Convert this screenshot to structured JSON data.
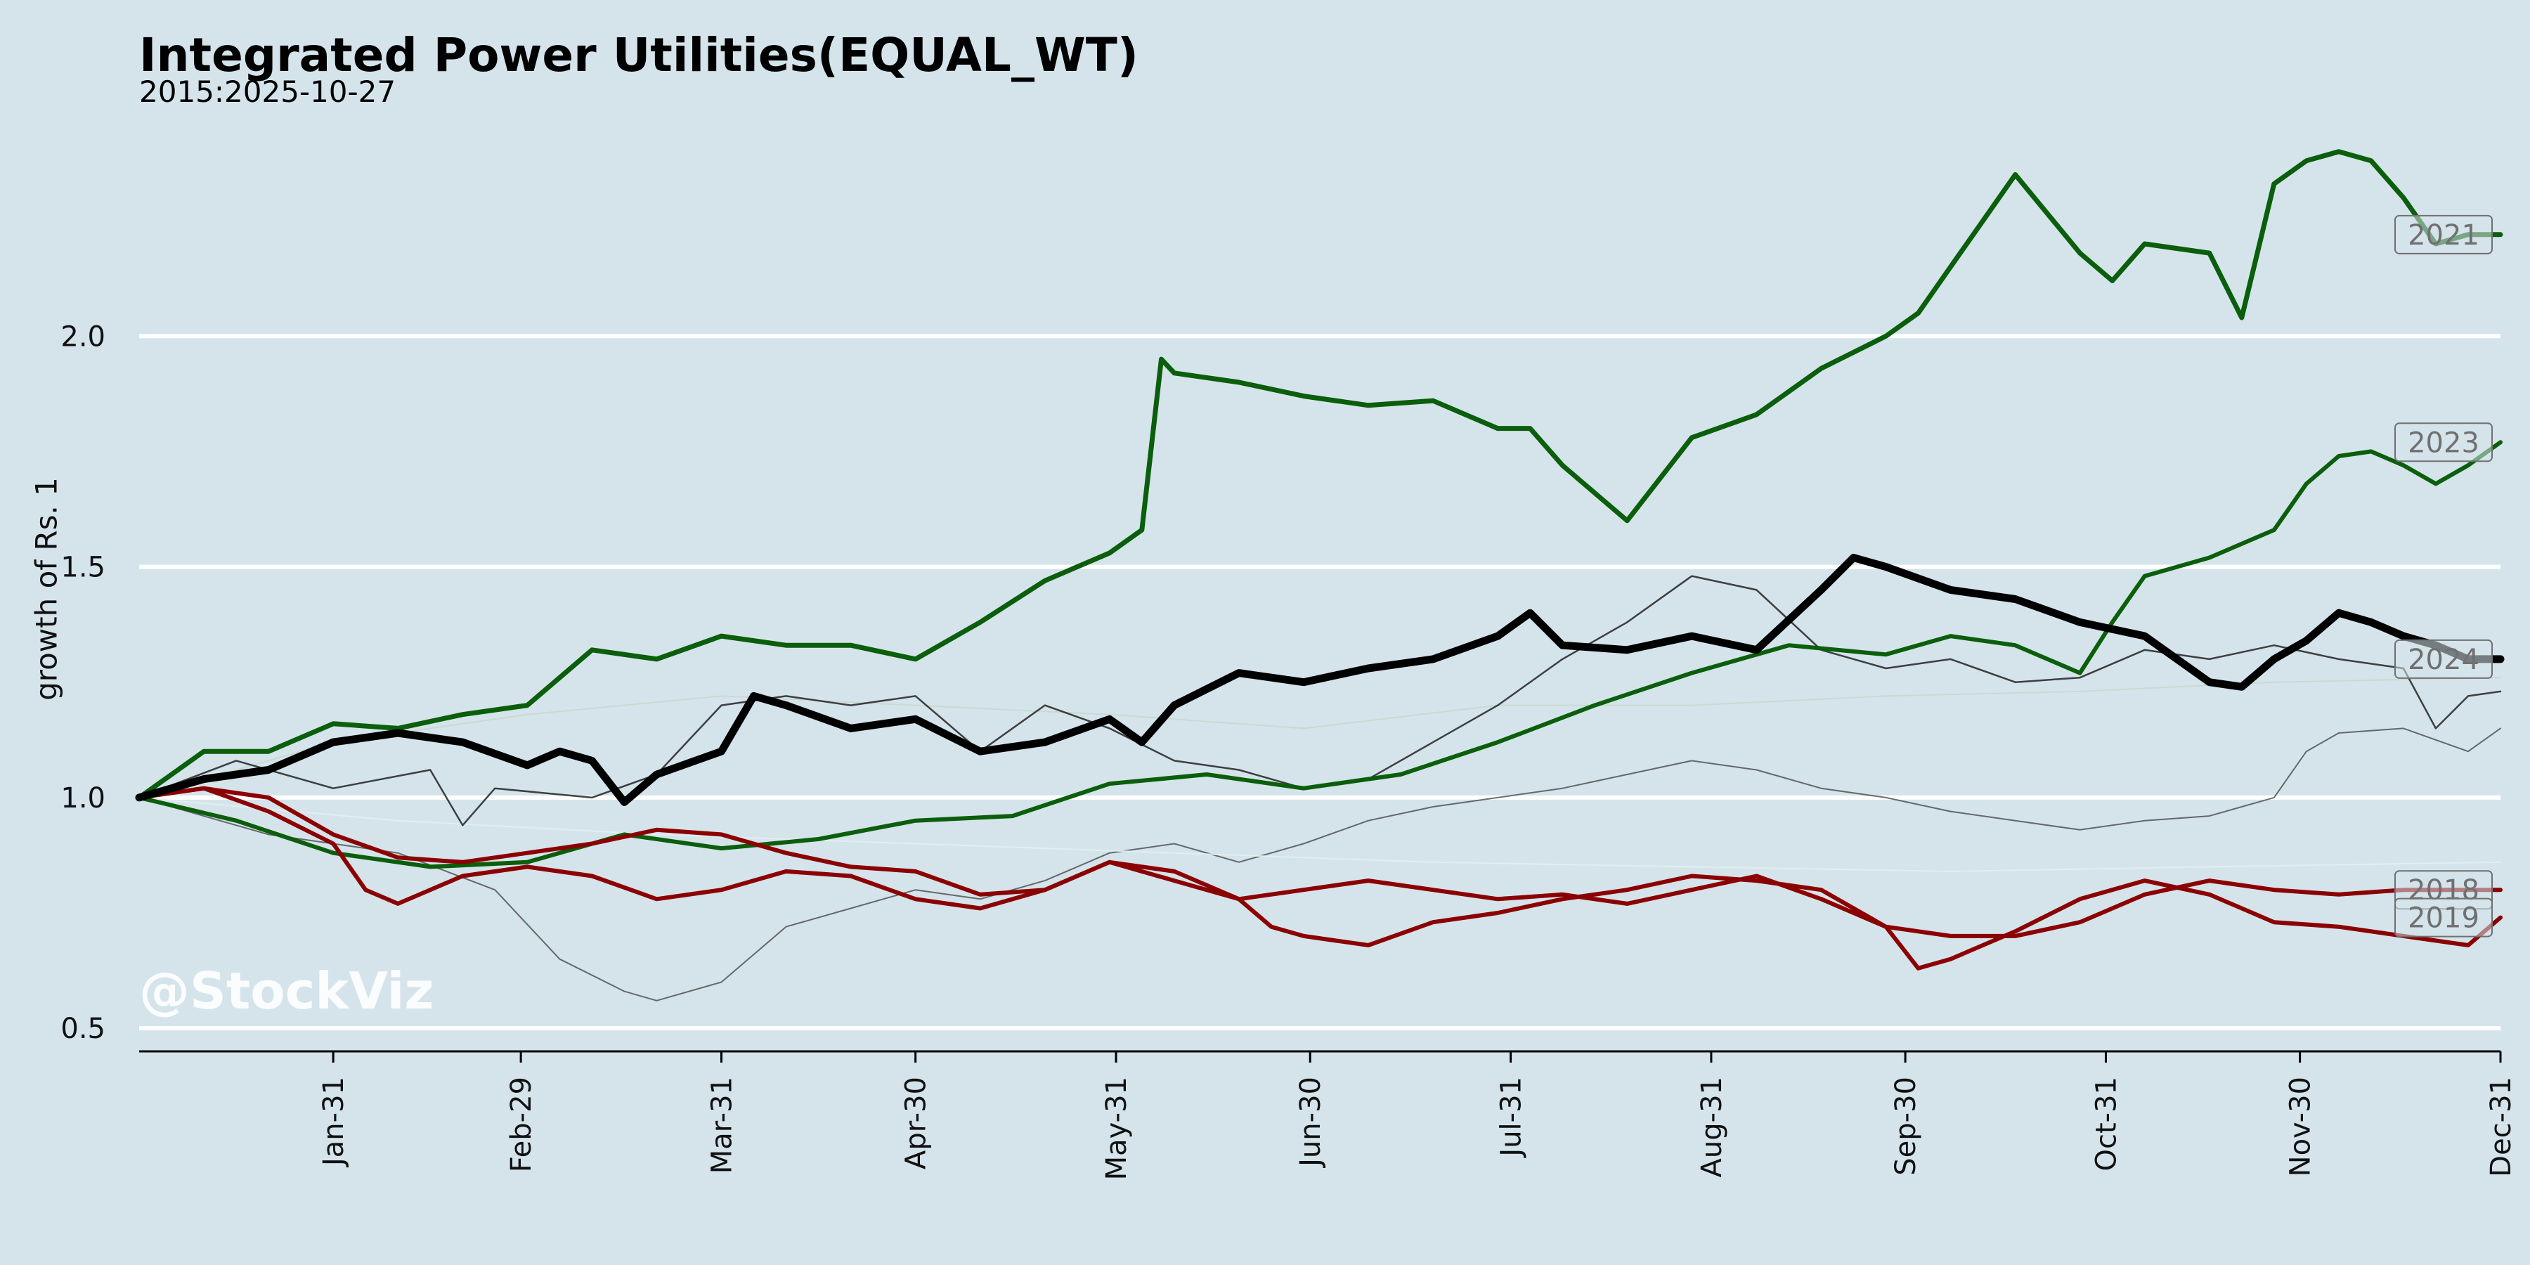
{
  "chart_data": {
    "type": "line",
    "title": "Integrated Power Utilities(EQUAL_WT)",
    "subtitle": "2015:2025-10-27",
    "ylabel": "growth of Rs. 1",
    "watermark": "@StockViz",
    "ylim": [
      0.45,
      2.5
    ],
    "y_ticks": [
      {
        "value": 0.5,
        "label": "0.5"
      },
      {
        "value": 1.0,
        "label": "1.0"
      },
      {
        "value": 1.5,
        "label": "1.5"
      },
      {
        "value": 2.0,
        "label": "2.0"
      }
    ],
    "x_domain_days": [
      0,
      365
    ],
    "x_ticks": [
      {
        "day": 30,
        "label": "Jan-31"
      },
      {
        "day": 59,
        "label": "Feb-29"
      },
      {
        "day": 90,
        "label": "Mar-31"
      },
      {
        "day": 120,
        "label": "Apr-30"
      },
      {
        "day": 151,
        "label": "May-31"
      },
      {
        "day": 181,
        "label": "Jun-30"
      },
      {
        "day": 212,
        "label": "Jul-31"
      },
      {
        "day": 243,
        "label": "Aug-31"
      },
      {
        "day": 273,
        "label": "Sep-30"
      },
      {
        "day": 304,
        "label": "Oct-31"
      },
      {
        "day": 334,
        "label": "Nov-30"
      },
      {
        "day": 365,
        "label": "Dec-31"
      }
    ],
    "grid": true,
    "colors": {
      "background": "#d5e4eb",
      "grid": "#ffffff",
      "green": "#0b5e0b",
      "red": "#8b0000",
      "black": "#000000"
    },
    "series": [
      {
        "name": "2021",
        "color": "#0b5e0b",
        "width": 7,
        "opacity": 1,
        "label": "2021",
        "x": [
          0,
          10,
          20,
          30,
          40,
          50,
          60,
          70,
          80,
          90,
          100,
          110,
          120,
          130,
          140,
          150,
          155,
          158,
          160,
          170,
          180,
          190,
          200,
          210,
          215,
          220,
          230,
          240,
          250,
          260,
          270,
          275,
          280,
          285,
          290,
          300,
          305,
          310,
          320,
          325,
          330,
          335,
          340,
          345,
          350,
          355,
          360,
          365
        ],
        "y": [
          1.0,
          1.1,
          1.1,
          1.16,
          1.15,
          1.18,
          1.2,
          1.32,
          1.3,
          1.35,
          1.33,
          1.33,
          1.3,
          1.38,
          1.47,
          1.53,
          1.58,
          1.95,
          1.92,
          1.9,
          1.87,
          1.85,
          1.86,
          1.8,
          1.8,
          1.72,
          1.6,
          1.78,
          1.83,
          1.93,
          2.0,
          2.05,
          2.15,
          2.25,
          2.35,
          2.18,
          2.12,
          2.2,
          2.18,
          2.04,
          2.33,
          2.38,
          2.4,
          2.38,
          2.3,
          2.2,
          2.22,
          2.22
        ]
      },
      {
        "name": "2023",
        "color": "#0b5e0b",
        "width": 6,
        "opacity": 1,
        "label": "2023",
        "x": [
          0,
          15,
          30,
          45,
          60,
          75,
          90,
          105,
          120,
          135,
          150,
          165,
          180,
          195,
          210,
          225,
          240,
          255,
          270,
          280,
          290,
          300,
          305,
          310,
          320,
          330,
          335,
          340,
          345,
          350,
          355,
          360,
          365
        ],
        "y": [
          1.0,
          0.95,
          0.88,
          0.85,
          0.86,
          0.92,
          0.89,
          0.91,
          0.95,
          0.96,
          1.03,
          1.05,
          1.02,
          1.05,
          1.12,
          1.2,
          1.27,
          1.33,
          1.31,
          1.35,
          1.33,
          1.27,
          1.38,
          1.48,
          1.52,
          1.58,
          1.68,
          1.74,
          1.75,
          1.72,
          1.68,
          1.72,
          1.77
        ]
      },
      {
        "name": "2024",
        "color": "#000000",
        "width": 11,
        "opacity": 1,
        "label": "2024",
        "x": [
          0,
          10,
          20,
          30,
          40,
          50,
          60,
          65,
          70,
          75,
          80,
          90,
          95,
          100,
          110,
          120,
          130,
          140,
          150,
          155,
          160,
          170,
          180,
          190,
          200,
          210,
          215,
          220,
          230,
          240,
          250,
          260,
          265,
          270,
          280,
          290,
          300,
          310,
          320,
          325,
          330,
          335,
          340,
          345,
          350,
          355,
          360,
          365
        ],
        "y": [
          1.0,
          1.04,
          1.06,
          1.12,
          1.14,
          1.12,
          1.07,
          1.1,
          1.08,
          0.99,
          1.05,
          1.1,
          1.22,
          1.2,
          1.15,
          1.17,
          1.1,
          1.12,
          1.17,
          1.12,
          1.2,
          1.27,
          1.25,
          1.28,
          1.3,
          1.35,
          1.4,
          1.33,
          1.32,
          1.35,
          1.32,
          1.45,
          1.52,
          1.5,
          1.45,
          1.43,
          1.38,
          1.35,
          1.25,
          1.24,
          1.3,
          1.34,
          1.4,
          1.38,
          1.35,
          1.33,
          1.3,
          1.3
        ]
      },
      {
        "name": "2018",
        "color": "#8b0000",
        "width": 6,
        "opacity": 1,
        "label": "2018",
        "x": [
          0,
          10,
          20,
          30,
          40,
          50,
          60,
          70,
          80,
          90,
          100,
          110,
          120,
          130,
          140,
          150,
          160,
          170,
          180,
          190,
          200,
          210,
          220,
          230,
          240,
          250,
          260,
          270,
          280,
          290,
          300,
          310,
          320,
          330,
          340,
          350,
          365
        ],
        "y": [
          1.0,
          1.02,
          1.0,
          0.92,
          0.87,
          0.86,
          0.88,
          0.9,
          0.93,
          0.92,
          0.88,
          0.85,
          0.84,
          0.79,
          0.8,
          0.86,
          0.82,
          0.78,
          0.8,
          0.82,
          0.8,
          0.78,
          0.79,
          0.77,
          0.8,
          0.83,
          0.78,
          0.72,
          0.7,
          0.7,
          0.73,
          0.79,
          0.82,
          0.8,
          0.79,
          0.8,
          0.8
        ]
      },
      {
        "name": "2019",
        "color": "#8b0000",
        "width": 6,
        "opacity": 1,
        "label": "2019",
        "x": [
          0,
          10,
          20,
          30,
          35,
          40,
          50,
          60,
          70,
          80,
          90,
          100,
          110,
          120,
          130,
          140,
          150,
          160,
          170,
          175,
          180,
          190,
          200,
          210,
          220,
          230,
          240,
          250,
          260,
          270,
          275,
          280,
          290,
          300,
          310,
          320,
          330,
          340,
          350,
          360,
          365
        ],
        "y": [
          1.0,
          1.02,
          0.97,
          0.9,
          0.8,
          0.77,
          0.83,
          0.85,
          0.83,
          0.78,
          0.8,
          0.84,
          0.83,
          0.78,
          0.76,
          0.8,
          0.86,
          0.84,
          0.78,
          0.72,
          0.7,
          0.68,
          0.73,
          0.75,
          0.78,
          0.8,
          0.83,
          0.82,
          0.8,
          0.72,
          0.63,
          0.65,
          0.71,
          0.78,
          0.82,
          0.79,
          0.73,
          0.72,
          0.7,
          0.68,
          0.74
        ]
      },
      {
        "name": "",
        "color": "#222222",
        "width": 2.5,
        "opacity": 0.85,
        "label": "",
        "x": [
          0,
          15,
          30,
          45,
          50,
          55,
          70,
          80,
          90,
          100,
          110,
          120,
          130,
          140,
          150,
          160,
          170,
          180,
          190,
          200,
          210,
          220,
          230,
          240,
          250,
          260,
          270,
          280,
          290,
          300,
          310,
          320,
          330,
          340,
          350,
          355,
          360,
          365
        ],
        "y": [
          1.0,
          1.08,
          1.02,
          1.06,
          0.94,
          1.02,
          1.0,
          1.05,
          1.2,
          1.22,
          1.2,
          1.22,
          1.1,
          1.2,
          1.15,
          1.08,
          1.06,
          1.02,
          1.04,
          1.12,
          1.2,
          1.3,
          1.38,
          1.48,
          1.45,
          1.32,
          1.28,
          1.3,
          1.25,
          1.26,
          1.32,
          1.3,
          1.33,
          1.3,
          1.28,
          1.15,
          1.22,
          1.23
        ]
      },
      {
        "name": "",
        "color": "#333333",
        "width": 2,
        "opacity": 0.7,
        "label": "",
        "x": [
          0,
          20,
          40,
          55,
          65,
          75,
          80,
          90,
          100,
          110,
          120,
          130,
          140,
          150,
          160,
          170,
          180,
          190,
          200,
          210,
          220,
          230,
          240,
          250,
          260,
          270,
          280,
          290,
          300,
          310,
          320,
          330,
          335,
          340,
          350,
          360,
          365
        ],
        "y": [
          1.0,
          0.92,
          0.88,
          0.8,
          0.65,
          0.58,
          0.56,
          0.6,
          0.72,
          0.76,
          0.8,
          0.78,
          0.82,
          0.88,
          0.9,
          0.86,
          0.9,
          0.95,
          0.98,
          1.0,
          1.02,
          1.05,
          1.08,
          1.06,
          1.02,
          1.0,
          0.97,
          0.95,
          0.93,
          0.95,
          0.96,
          1.0,
          1.1,
          1.14,
          1.15,
          1.1,
          1.15
        ]
      },
      {
        "name": "",
        "color": "#c9d8cf",
        "width": 2,
        "opacity": 0.9,
        "label": "",
        "x": [
          0,
          30,
          60,
          90,
          120,
          150,
          180,
          210,
          240,
          270,
          300,
          330,
          365
        ],
        "y": [
          1.0,
          1.12,
          1.18,
          1.22,
          1.2,
          1.18,
          1.15,
          1.2,
          1.2,
          1.22,
          1.23,
          1.25,
          1.26
        ]
      },
      {
        "name": "",
        "color": "#e3edf1",
        "width": 2,
        "opacity": 0.9,
        "label": "",
        "x": [
          0,
          40,
          80,
          120,
          160,
          200,
          240,
          280,
          320,
          365
        ],
        "y": [
          1.0,
          0.95,
          0.92,
          0.9,
          0.88,
          0.86,
          0.85,
          0.84,
          0.85,
          0.86
        ]
      }
    ]
  }
}
